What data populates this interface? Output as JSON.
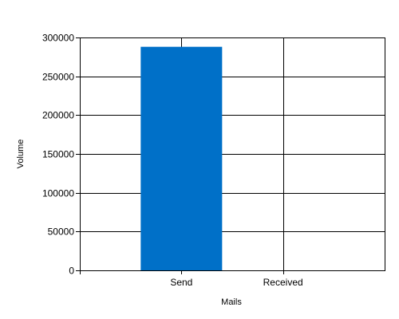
{
  "chart_data": {
    "type": "bar",
    "title": "",
    "xlabel": "Mails",
    "ylabel": "Volume",
    "categories": [
      "Send",
      "Received"
    ],
    "series": [
      {
        "values": [
          288000,
          0
        ]
      }
    ],
    "ylim": [
      0,
      300000
    ],
    "yticks": [
      0,
      50000,
      100000,
      150000,
      200000,
      250000,
      300000
    ],
    "ytick_labels": [
      "0",
      "50000",
      "100000",
      "150000",
      "200000",
      "250000",
      "300000"
    ],
    "grid": true,
    "legend": "none",
    "bar_color": "#0070C8",
    "grid_color": "#000000"
  }
}
